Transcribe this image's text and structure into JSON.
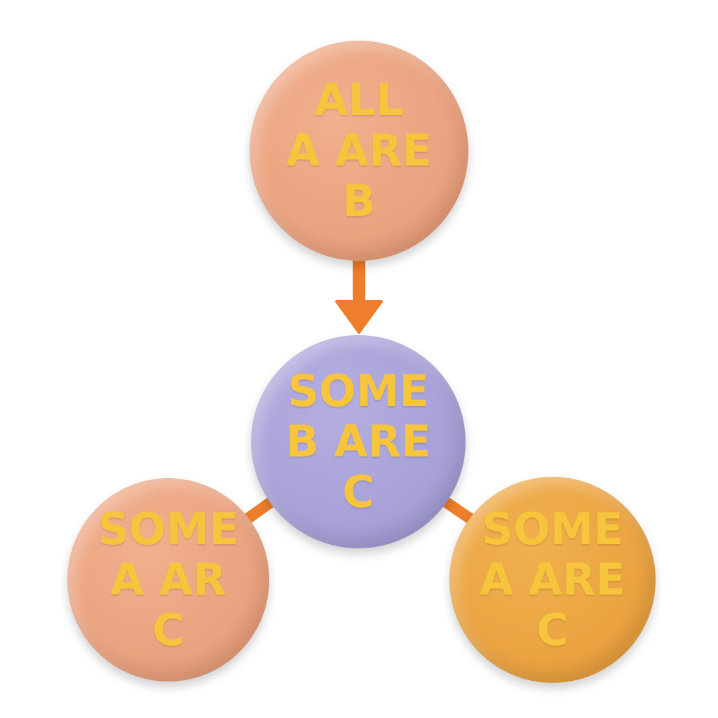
{
  "nodes": {
    "top": {
      "lines": [
        "ALL",
        "A ARE",
        "B"
      ]
    },
    "center": {
      "lines": [
        "SOME",
        "B ARE",
        "C"
      ]
    },
    "left": {
      "lines": [
        "SOME",
        "A AR",
        "C"
      ]
    },
    "right": {
      "lines": [
        "SOME",
        "A ARE",
        "C"
      ]
    }
  },
  "colors": {
    "text": "#f7c53c",
    "peach": "#e9a07d",
    "lavender": "#a59fd6",
    "orange": "#eaa140",
    "connector": "#ee7e2c"
  }
}
